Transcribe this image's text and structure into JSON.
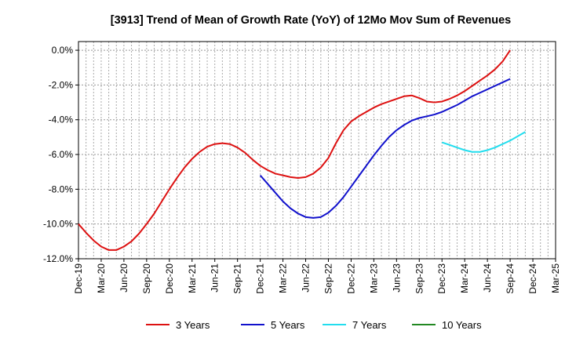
{
  "chart_data": {
    "type": "line",
    "title": "[3913]  Trend of Mean of Growth Rate (YoY) of 12Mo Mov Sum of Revenues",
    "xlabel": "",
    "ylabel": "",
    "ylim": [
      -12.0,
      0.5
    ],
    "y_ticks": [
      0.0,
      -2.0,
      -4.0,
      -6.0,
      -8.0,
      -10.0,
      -12.0
    ],
    "y_tick_labels": [
      "0.0%",
      "-2.0%",
      "-4.0%",
      "-6.0%",
      "-8.0%",
      "-10.0%",
      "-12.0%"
    ],
    "x_tick_labels": [
      "Dec-19",
      "Mar-20",
      "Jun-20",
      "Sep-20",
      "Dec-20",
      "Mar-21",
      "Jun-21",
      "Sep-21",
      "Dec-21",
      "Mar-22",
      "Jun-22",
      "Sep-22",
      "Dec-22",
      "Mar-23",
      "Jun-23",
      "Sep-23",
      "Dec-23",
      "Mar-24",
      "Jun-24",
      "Sep-24",
      "Dec-24",
      "Mar-25"
    ],
    "x_index_range": [
      0,
      63
    ],
    "grid": true,
    "legend_position": "bottom",
    "series": [
      {
        "name": "3 Years",
        "color": "#dd1111",
        "start_index": 0,
        "values": [
          -10.0,
          -10.5,
          -10.95,
          -11.3,
          -11.5,
          -11.5,
          -11.3,
          -11.0,
          -10.55,
          -10.0,
          -9.4,
          -8.7,
          -8.0,
          -7.35,
          -6.75,
          -6.25,
          -5.85,
          -5.55,
          -5.4,
          -5.35,
          -5.4,
          -5.6,
          -5.9,
          -6.3,
          -6.65,
          -6.9,
          -7.1,
          -7.2,
          -7.3,
          -7.35,
          -7.3,
          -7.1,
          -6.75,
          -6.2,
          -5.35,
          -4.6,
          -4.1,
          -3.8,
          -3.55,
          -3.3,
          -3.1,
          -2.95,
          -2.8,
          -2.65,
          -2.6,
          -2.75,
          -2.95,
          -3.0,
          -2.95,
          -2.8,
          -2.6,
          -2.35,
          -2.05,
          -1.75,
          -1.45,
          -1.1,
          -0.65,
          0.0
        ]
      },
      {
        "name": "5 Years",
        "color": "#1111cc",
        "start_index": 24,
        "values": [
          -7.2,
          -7.7,
          -8.2,
          -8.7,
          -9.1,
          -9.4,
          -9.6,
          -9.65,
          -9.6,
          -9.35,
          -8.95,
          -8.45,
          -7.85,
          -7.25,
          -6.65,
          -6.05,
          -5.5,
          -5.0,
          -4.6,
          -4.3,
          -4.05,
          -3.9,
          -3.8,
          -3.7,
          -3.55,
          -3.35,
          -3.15,
          -2.9,
          -2.65,
          -2.45,
          -2.25,
          -2.05,
          -1.85,
          -1.65
        ]
      },
      {
        "name": "7 Years",
        "color": "#22ddee",
        "start_index": 48,
        "values": [
          -5.3,
          -5.45,
          -5.6,
          -5.75,
          -5.85,
          -5.85,
          -5.75,
          -5.6,
          -5.4,
          -5.2,
          -4.95,
          -4.7
        ]
      },
      {
        "name": "10 Years",
        "color": "#228822",
        "start_index": null,
        "values": []
      }
    ]
  }
}
